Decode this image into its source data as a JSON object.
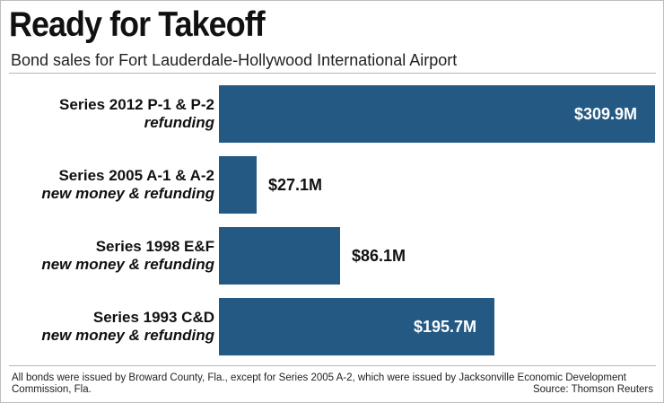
{
  "chart_data": {
    "type": "bar",
    "orientation": "horizontal",
    "title": "Ready for Takeoff",
    "subtitle": "Bond sales for Fort Lauderdale-Hollywood International Airport",
    "categories": [
      {
        "line1": "Series 2012 P-1 & P-2",
        "line2": "refunding"
      },
      {
        "line1": "Series 2005 A-1 & A-2",
        "line2": "new money & refunding"
      },
      {
        "line1": "Series 1998 E&F",
        "line2": "new money & refunding"
      },
      {
        "line1": "Series 1993 C&D",
        "line2": "new money & refunding"
      }
    ],
    "values": [
      309.9,
      27.1,
      86.1,
      195.7
    ],
    "value_labels": [
      "$309.9M",
      "$27.1M",
      "$86.1M",
      "$195.7M"
    ],
    "unit": "$M",
    "xlim": [
      0,
      309.9
    ],
    "bar_color": "#245983",
    "grid": false,
    "legend": "none",
    "footnote": "All bonds were issued by Broward County, Fla., except for Series 2005 A-2, which were issued by Jacksonville Economic Development Commission, Fla.",
    "source": "Source: Thomson Reuters"
  }
}
